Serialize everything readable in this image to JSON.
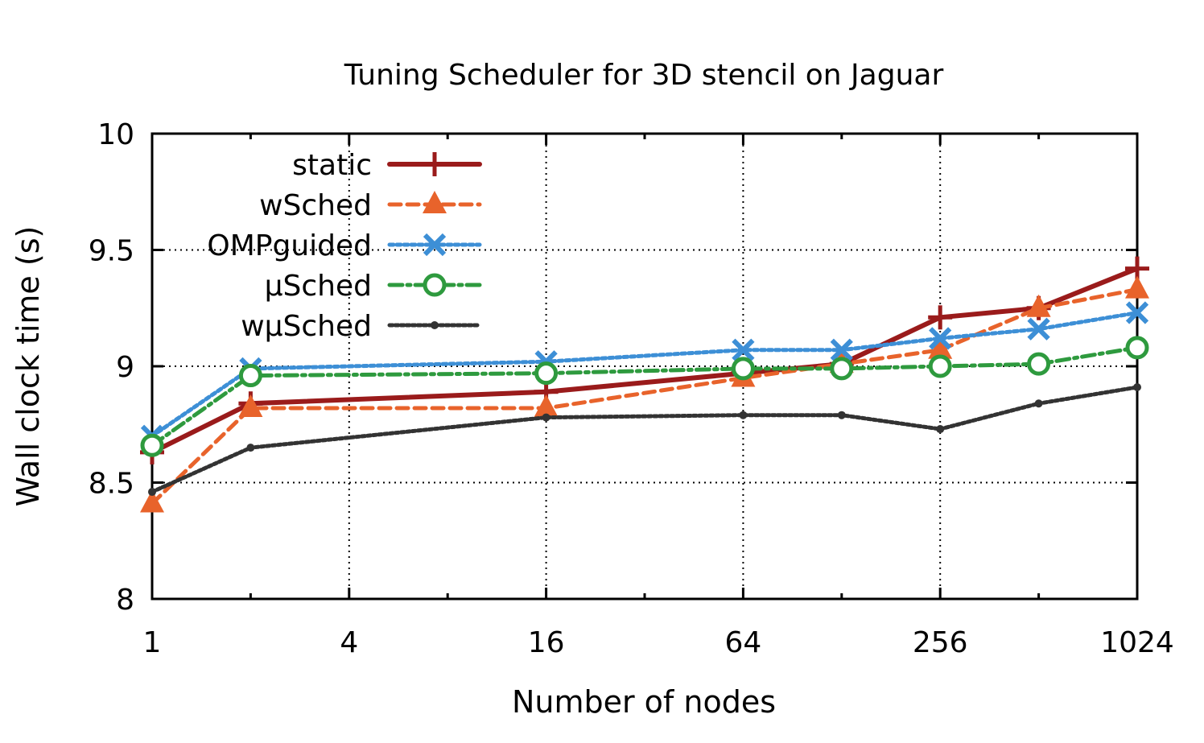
{
  "chart_data": {
    "type": "line",
    "title": "Tuning Scheduler for 3D stencil on Jaguar",
    "xlabel": "Number of nodes",
    "ylabel": "Wall clock time (s)",
    "x_scale": "log2",
    "x_ticks": [
      1,
      4,
      16,
      64,
      256,
      1024
    ],
    "x_tick_labels": [
      "1",
      "4",
      "16",
      "64",
      "256",
      "1024"
    ],
    "xlim": [
      1,
      1024
    ],
    "y_ticks": [
      8,
      8.5,
      9,
      9.5,
      10
    ],
    "y_tick_labels": [
      "8",
      "8.5",
      "9",
      "9.5",
      "10"
    ],
    "ylim": [
      8,
      10
    ],
    "grid": true,
    "legend_position": "top-left",
    "x": [
      1,
      2,
      16,
      64,
      128,
      256,
      512,
      1024
    ],
    "series": [
      {
        "name": "static",
        "color": "#9a1b1b",
        "marker": "plus",
        "dash": "solid",
        "x": [
          1,
          2,
          16,
          64,
          128,
          256,
          512,
          1024
        ],
        "values": [
          8.63,
          8.84,
          8.89,
          8.97,
          9.01,
          9.21,
          9.25,
          9.42
        ]
      },
      {
        "name": "wSched",
        "color": "#e8632b",
        "marker": "triangle",
        "dash": "dashed",
        "x": [
          1,
          2,
          16,
          64,
          128,
          256,
          512,
          1024
        ],
        "values": [
          8.41,
          8.82,
          8.82,
          8.95,
          9.01,
          9.07,
          9.25,
          9.33
        ]
      },
      {
        "name": "OMPguided",
        "color": "#3d8fd6",
        "marker": "cross",
        "dash": "dotted",
        "x": [
          1,
          2,
          16,
          64,
          128,
          256,
          512,
          1024
        ],
        "values": [
          8.7,
          8.99,
          9.02,
          9.07,
          9.07,
          9.12,
          9.16,
          9.23
        ]
      },
      {
        "name": "µSched",
        "color": "#2e9a3e",
        "marker": "circle",
        "dash": "dashdot",
        "x": [
          1,
          2,
          16,
          64,
          128,
          256,
          512,
          1024
        ],
        "values": [
          8.66,
          8.96,
          8.97,
          8.99,
          8.99,
          9.0,
          9.01,
          9.08
        ]
      },
      {
        "name": "wµSched",
        "color": "#333333",
        "marker": "dot",
        "dash": "dotted-dense",
        "x": [
          1,
          2,
          16,
          64,
          128,
          256,
          512,
          1024
        ],
        "values": [
          8.46,
          8.65,
          8.78,
          8.79,
          8.79,
          8.73,
          8.84,
          8.91
        ]
      }
    ]
  }
}
